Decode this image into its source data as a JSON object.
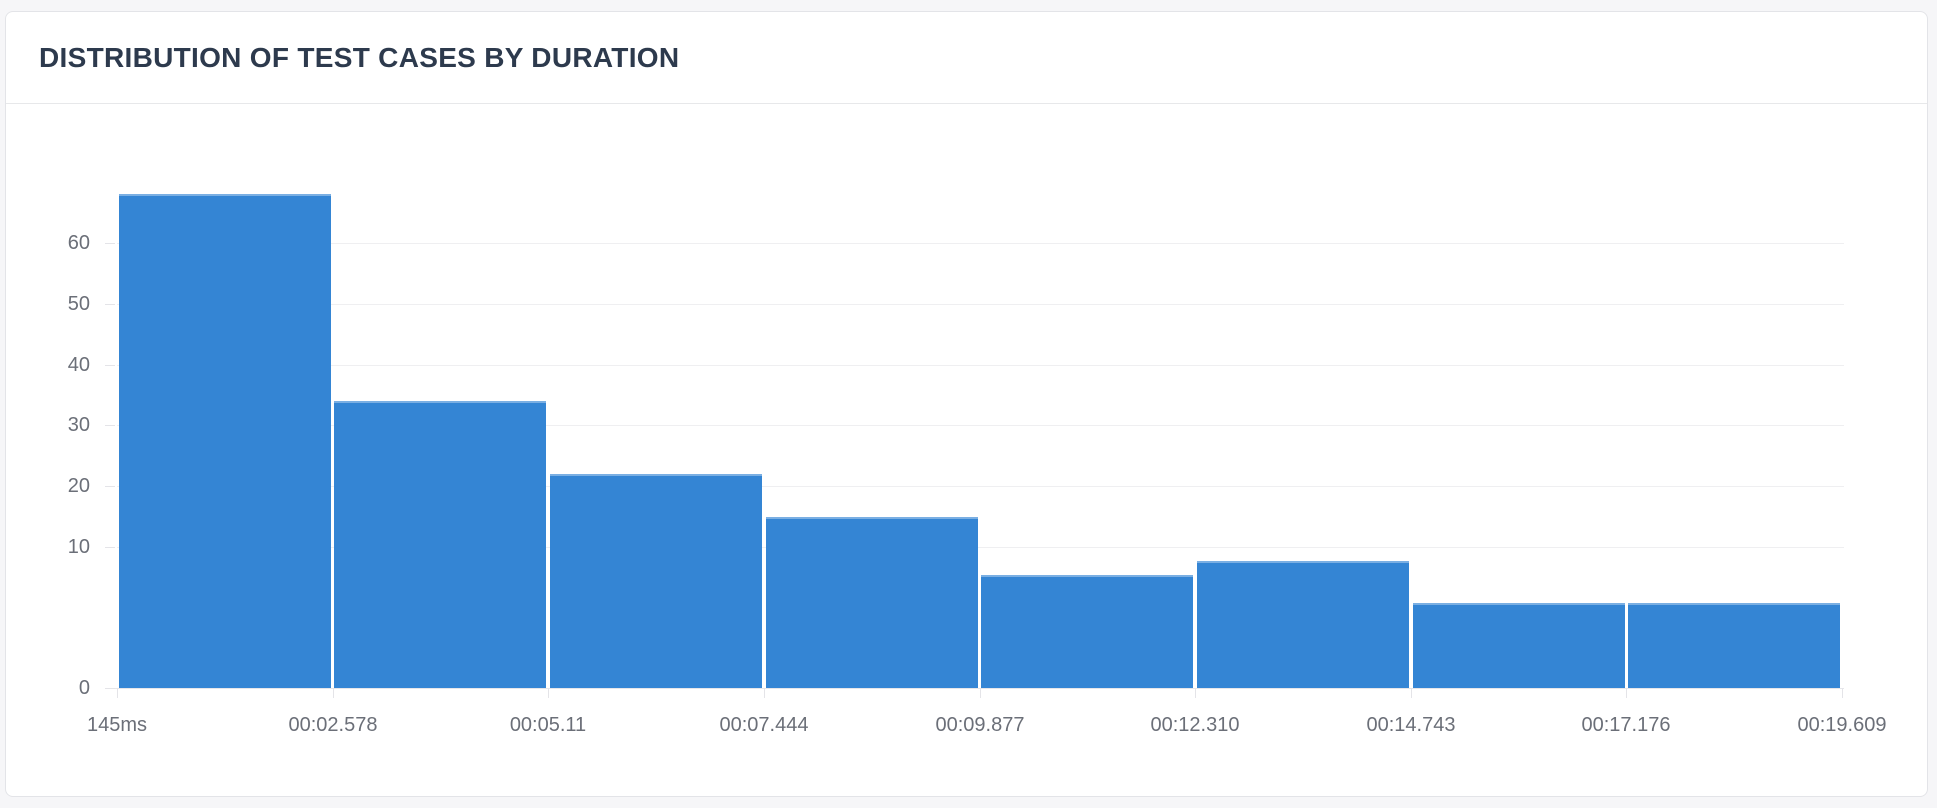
{
  "page": {
    "background_color": "#f6f6f8"
  },
  "card": {
    "title": "DISTRIBUTION OF TEST CASES BY DURATION",
    "title_color": "#2d3a4d",
    "background_color": "#ffffff",
    "border_color": "#e3e4e8"
  },
  "chart_data": {
    "type": "bar",
    "title": "DISTRIBUTION OF TEST CASES BY DURATION",
    "categories": [
      "145ms",
      "00:02.578",
      "00:05.11",
      "00:07.444",
      "00:09.877",
      "00:12.310",
      "00:14.743",
      "00:17.176",
      "00:19.609"
    ],
    "values": [
      68,
      34,
      22,
      15,
      8,
      9,
      6,
      6
    ],
    "y_ticks": [
      0,
      10,
      20,
      30,
      40,
      50,
      60
    ],
    "ylim": [
      0,
      70
    ],
    "xlabel": "",
    "ylabel": "",
    "grid": true,
    "legend": false,
    "bar_color": "#3485d4",
    "grid_color": "#efeff1",
    "axis_color": "#e6e6ea",
    "tick_label_color": "#6b6f78",
    "y_scale": {
      "type": "piecewise-linear",
      "note": "segment 0-10 rendered with ~2.3x the pixel spacing of segments 10-60",
      "breakpoint": 10
    }
  }
}
